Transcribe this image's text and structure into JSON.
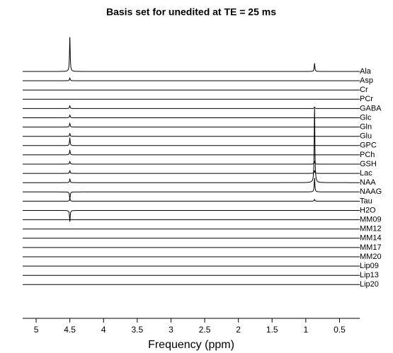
{
  "chart_data": {
    "type": "spectra",
    "title": "Basis set for unedited at TE = 25 ms",
    "x_label": "Frequency (ppm)",
    "xlim": [
      5.2,
      0.2
    ],
    "xticks": [
      5,
      4.5,
      4,
      3.5,
      3,
      2.5,
      2,
      1.5,
      1,
      0.5
    ],
    "color": "#000000",
    "series": [
      {
        "name": "Ala",
        "peaks": [
          {
            "ppm": 4.5,
            "height": 3.7
          },
          {
            "ppm": 0.87,
            "height": 0.85
          }
        ]
      },
      {
        "name": "Asp",
        "peaks": [
          {
            "ppm": 4.5,
            "height": 0.3
          }
        ]
      },
      {
        "name": "Cr",
        "peaks": []
      },
      {
        "name": "PCr",
        "peaks": []
      },
      {
        "name": "GABA",
        "peaks": [
          {
            "ppm": 4.5,
            "height": 0.3
          },
          {
            "ppm": 0.87,
            "height": 0.15
          }
        ]
      },
      {
        "name": "Glc",
        "peaks": [
          {
            "ppm": 4.5,
            "height": 0.3
          }
        ]
      },
      {
        "name": "Gln",
        "peaks": [
          {
            "ppm": 4.5,
            "height": 0.4
          }
        ]
      },
      {
        "name": "Glu",
        "peaks": [
          {
            "ppm": 4.5,
            "height": 0.3
          }
        ]
      },
      {
        "name": "GPC",
        "peaks": [
          {
            "ppm": 4.5,
            "height": 0.8
          }
        ]
      },
      {
        "name": "PCh",
        "peaks": [
          {
            "ppm": 4.5,
            "height": 0.5
          }
        ]
      },
      {
        "name": "GSH",
        "peaks": [
          {
            "ppm": 4.5,
            "height": 0.3
          },
          {
            "ppm": 0.87,
            "height": 0.3
          }
        ]
      },
      {
        "name": "Lac",
        "peaks": [
          {
            "ppm": 4.5,
            "height": 0.3
          },
          {
            "ppm": 0.87,
            "height": 0.3
          }
        ]
      },
      {
        "name": "NAA",
        "peaks": [
          {
            "ppm": 4.5,
            "height": 0.4
          },
          {
            "ppm": 0.87,
            "height": 8.0
          }
        ]
      },
      {
        "name": "NAAG",
        "peaks": [
          {
            "ppm": 4.5,
            "height": -0.8
          },
          {
            "ppm": 0.87,
            "height": 1.5
          }
        ]
      },
      {
        "name": "Tau",
        "peaks": [
          {
            "ppm": 4.5,
            "height": 0.3
          },
          {
            "ppm": 0.87,
            "height": 0.2
          }
        ]
      },
      {
        "name": "H2O",
        "peaks": [
          {
            "ppm": 4.5,
            "height": -1.2
          }
        ]
      },
      {
        "name": "MM09",
        "peaks": []
      },
      {
        "name": "MM12",
        "peaks": []
      },
      {
        "name": "MM14",
        "peaks": []
      },
      {
        "name": "MM17",
        "peaks": []
      },
      {
        "name": "MM20",
        "peaks": []
      },
      {
        "name": "Lip09",
        "peaks": []
      },
      {
        "name": "Lip13",
        "peaks": []
      },
      {
        "name": "Lip20",
        "peaks": []
      }
    ]
  }
}
